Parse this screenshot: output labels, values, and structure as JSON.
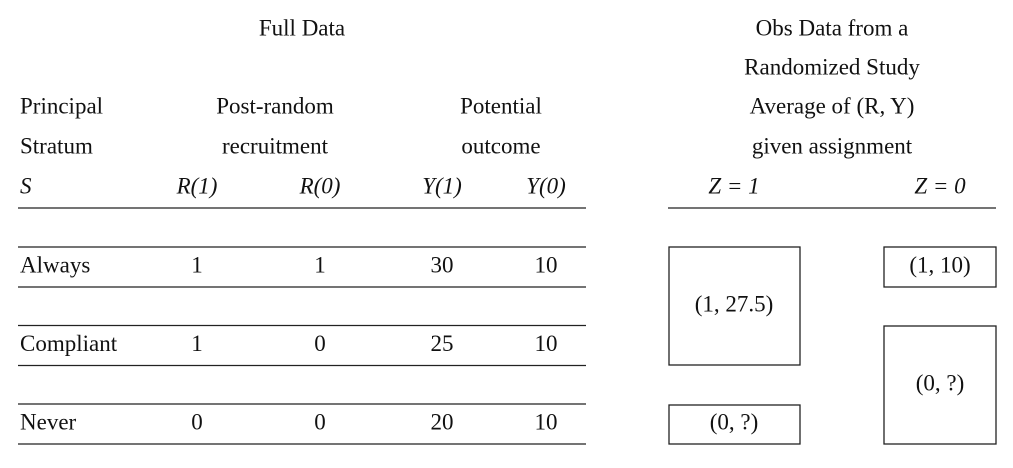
{
  "full_data_title": "Full Data",
  "obs_title": [
    "Obs Data from a",
    "Randomized Study",
    "Average of (R, Y)",
    "given assignment"
  ],
  "stratum_header": [
    "Principal",
    "Stratum",
    "S"
  ],
  "recruitment_header": [
    "Post-random",
    "recruitment"
  ],
  "outcome_header": [
    "Potential",
    "outcome"
  ],
  "columns": [
    "R(1)",
    "R(0)",
    "Y(1)",
    "Y(0)"
  ],
  "assignment_columns": [
    "Z = 1",
    "Z = 0"
  ],
  "rows": [
    [
      "Always",
      1,
      1,
      30,
      10
    ],
    [
      "Compliant",
      1,
      0,
      25,
      10
    ],
    [
      "Never",
      0,
      0,
      20,
      10
    ]
  ],
  "z1_boxes": [
    "(1, 27.5)",
    "(0, ?)"
  ],
  "z0_boxes": [
    "(1, 10)",
    "(0, ?)"
  ]
}
